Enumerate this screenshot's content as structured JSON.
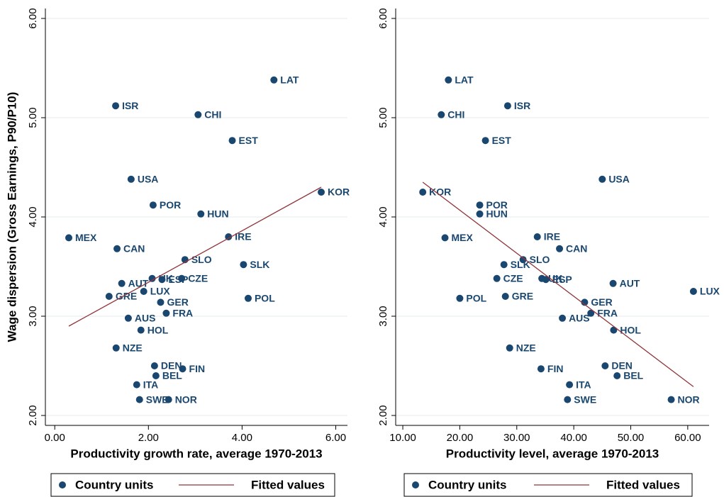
{
  "chart_data": [
    {
      "type": "scatter",
      "xlabel": "Productivity growth rate, average 1970-2013",
      "ylabel": "Wage dispersion (Gross Earnings, P90/P10)",
      "xlim": [
        -0.2,
        6.25
      ],
      "ylim": [
        1.9,
        6.1
      ],
      "xticks": [
        {
          "value": 0,
          "label": "0.00"
        },
        {
          "value": 2,
          "label": "2.00"
        },
        {
          "value": 4,
          "label": "4.00"
        },
        {
          "value": 6,
          "label": "6.00"
        }
      ],
      "yticks": [
        {
          "value": 2,
          "label": "2.00"
        },
        {
          "value": 3,
          "label": "3.00"
        },
        {
          "value": 4,
          "label": "4.00"
        },
        {
          "value": 5,
          "label": "5.00"
        },
        {
          "value": 6,
          "label": "6.00"
        }
      ],
      "grid": true,
      "series": [
        {
          "name": "Country units",
          "type": "scatter",
          "color": "#1a476f",
          "labels": [
            "LAT",
            "ISR",
            "CHI",
            "EST",
            "USA",
            "POR",
            "HUN",
            "KOR",
            "MEX",
            "IRE",
            "CAN",
            "SLO",
            "SLK",
            "UK",
            "ESP",
            "CZE",
            "AUT",
            "LUX",
            "GRE",
            "POL",
            "GER",
            "FRA",
            "AUS",
            "HOL",
            "NZE",
            "DEN",
            "FIN",
            "BEL",
            "ITA",
            "SWE",
            "NOR"
          ],
          "x": [
            4.68,
            1.3,
            3.06,
            3.79,
            1.63,
            2.1,
            3.12,
            5.69,
            0.3,
            3.71,
            1.33,
            2.78,
            4.03,
            2.08,
            2.29,
            2.71,
            1.43,
            1.9,
            1.16,
            4.13,
            2.26,
            2.38,
            1.57,
            1.84,
            1.31,
            2.13,
            2.73,
            2.16,
            1.75,
            1.81,
            2.43
          ],
          "values": [
            5.38,
            5.12,
            5.03,
            4.77,
            4.38,
            4.12,
            4.03,
            4.25,
            3.79,
            3.8,
            3.68,
            3.57,
            3.52,
            3.38,
            3.37,
            3.38,
            3.33,
            3.25,
            3.2,
            3.18,
            3.14,
            3.03,
            2.98,
            2.86,
            2.68,
            2.5,
            2.47,
            2.4,
            2.31,
            2.16,
            2.16
          ]
        },
        {
          "name": "Fitted values",
          "type": "line",
          "color": "#90353b",
          "x": [
            0.3,
            5.69
          ],
          "values": [
            2.9,
            4.3
          ]
        }
      ]
    },
    {
      "type": "scatter",
      "xlabel": "Productivity level, average 1970-2013",
      "xlim": [
        8.75,
        63.75
      ],
      "ylim": [
        1.9,
        6.1
      ],
      "xticks": [
        {
          "value": 10,
          "label": "10.00"
        },
        {
          "value": 20,
          "label": "20.00"
        },
        {
          "value": 30,
          "label": "30.00"
        },
        {
          "value": 40,
          "label": "40.00"
        },
        {
          "value": 50,
          "label": "50.00"
        },
        {
          "value": 60,
          "label": "60.00"
        }
      ],
      "yticks": [
        {
          "value": 2,
          "label": "2.00"
        },
        {
          "value": 3,
          "label": "3.00"
        },
        {
          "value": 4,
          "label": "4.00"
        },
        {
          "value": 5,
          "label": "5.00"
        },
        {
          "value": 6,
          "label": "6.00"
        }
      ],
      "grid": true,
      "series": [
        {
          "name": "Country units",
          "type": "scatter",
          "color": "#1a476f",
          "labels": [
            "LAT",
            "ISR",
            "CHI",
            "EST",
            "USA",
            "KOR",
            "POR",
            "HUN",
            "MEX",
            "IRE",
            "CAN",
            "SLO",
            "SLK",
            "CZE",
            "UK",
            "ESP",
            "AUT",
            "LUX",
            "GRE",
            "POL",
            "GER",
            "FRA",
            "AUS",
            "HOL",
            "NZE",
            "DEN",
            "FIN",
            "BEL",
            "ITA",
            "SWE",
            "NOR"
          ],
          "x": [
            18.0,
            28.4,
            16.75,
            24.5,
            45.0,
            13.5,
            23.5,
            23.5,
            17.4,
            33.6,
            37.5,
            31.1,
            27.75,
            26.5,
            34.4,
            35.1,
            46.9,
            61.0,
            28.0,
            20.0,
            41.9,
            43.0,
            38.0,
            47.0,
            28.75,
            45.5,
            34.25,
            47.6,
            39.25,
            38.9,
            57.1
          ],
          "values": [
            5.38,
            5.12,
            5.03,
            4.77,
            4.38,
            4.25,
            4.12,
            4.03,
            3.79,
            3.8,
            3.68,
            3.57,
            3.52,
            3.38,
            3.38,
            3.37,
            3.33,
            3.25,
            3.2,
            3.18,
            3.14,
            3.03,
            2.98,
            2.86,
            2.68,
            2.5,
            2.47,
            2.4,
            2.31,
            2.16,
            2.16
          ]
        },
        {
          "name": "Fitted values",
          "type": "line",
          "color": "#90353b",
          "x": [
            13.5,
            61.0
          ],
          "values": [
            4.35,
            2.29
          ]
        }
      ]
    }
  ]
}
